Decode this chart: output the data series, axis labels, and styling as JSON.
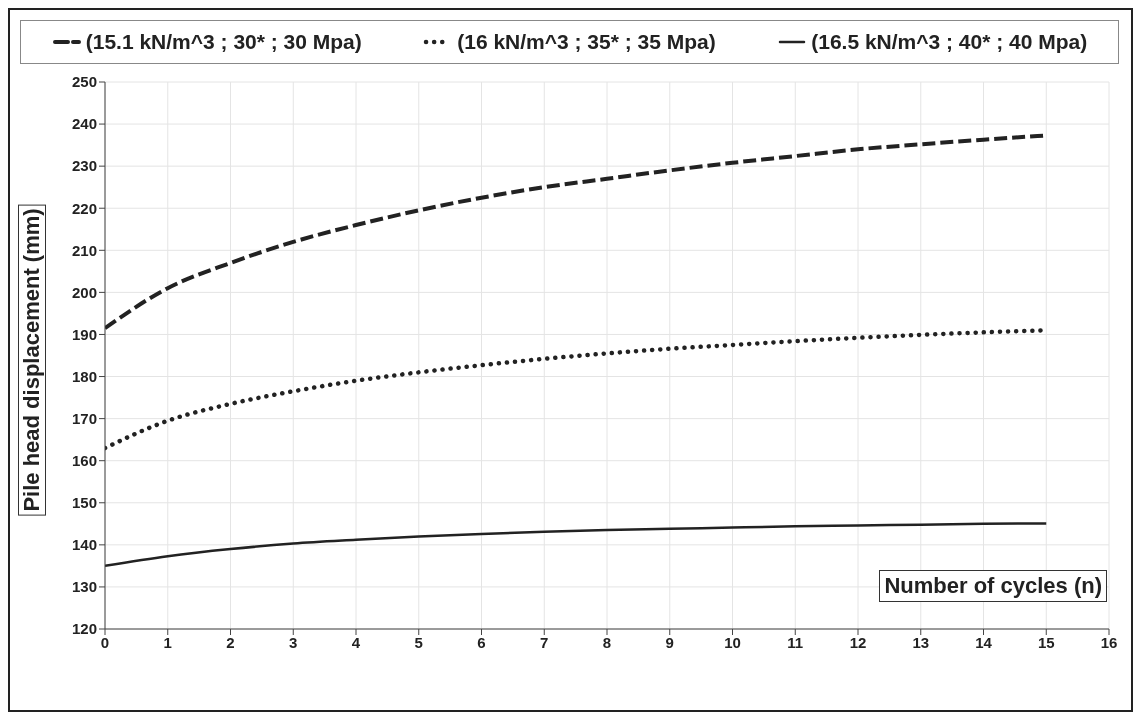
{
  "chart_data": {
    "type": "line",
    "xlabel": "Number of cycles (n)",
    "ylabel": "Pile head displacement (mm)",
    "x": [
      0,
      1,
      2,
      3,
      4,
      5,
      6,
      7,
      8,
      9,
      10,
      11,
      12,
      13,
      14,
      15
    ],
    "series": [
      {
        "name": "(15.1 kN/m^3 ; 30* ; 30 Mpa)",
        "color": "#222222",
        "line_style": "dashed",
        "values": [
          191.5,
          201,
          207,
          212,
          216,
          219.5,
          222.5,
          225,
          227,
          229,
          230.8,
          232.4,
          234,
          235.2,
          236.3,
          237.3
        ]
      },
      {
        "name": "(16 kN/m^3 ; 35* ; 35 Mpa)",
        "color": "#222222",
        "line_style": "dotted",
        "values": [
          163,
          169.5,
          173.5,
          176.5,
          179,
          181,
          182.7,
          184.2,
          185.5,
          186.6,
          187.5,
          188.4,
          189.2,
          189.9,
          190.5,
          191
        ]
      },
      {
        "name": "(16.5 kN/m^3 ; 40* ; 40 Mpa)",
        "color": "#222222",
        "line_style": "solid",
        "values": [
          135,
          137.3,
          139,
          140.3,
          141.2,
          142,
          142.6,
          143.1,
          143.5,
          143.8,
          144.1,
          144.4,
          144.6,
          144.8,
          145,
          145.1
        ]
      }
    ],
    "xlim": [
      0,
      16
    ],
    "xticks": [
      0,
      1,
      2,
      3,
      4,
      5,
      6,
      7,
      8,
      9,
      10,
      11,
      12,
      13,
      14,
      15,
      16
    ],
    "ylim": [
      120,
      250
    ],
    "yticks": [
      120,
      130,
      140,
      150,
      160,
      170,
      180,
      190,
      200,
      210,
      220,
      230,
      240,
      250
    ],
    "grid": true,
    "legend": "top"
  }
}
